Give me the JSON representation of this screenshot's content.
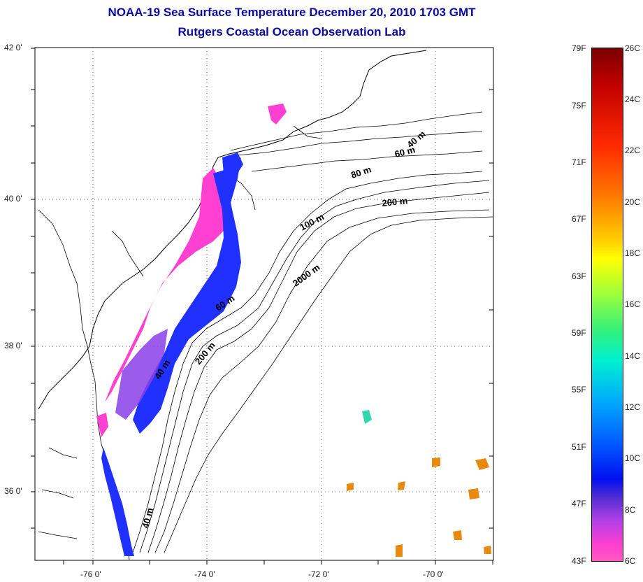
{
  "title": {
    "line1": "NOAA-19 Sea Surface Temperature December 20, 2010 1703 GMT",
    "line2": "Rutgers Coastal Ocean Observation Lab"
  },
  "map": {
    "lat_labels": [
      "42 0'",
      "40 0'",
      "38 0'",
      "36 0'"
    ],
    "lon_labels": [
      "-76 0'",
      "-74 0'",
      "-72 0'",
      "-70 0'"
    ],
    "isobath_labels": [
      "40 m",
      "60 m",
      "80 m",
      "200 m",
      "100 m",
      "2000 m",
      "60 m",
      "40 m",
      "200 m",
      "40 m"
    ],
    "sst_colors": {
      "cold": "#ff40d0",
      "mid": "#2030ff",
      "warm": "#e88a10"
    }
  },
  "colorbar": {
    "fahrenheit": [
      "79F",
      "75F",
      "71F",
      "67F",
      "63F",
      "59F",
      "55F",
      "51F",
      "47F",
      "43F"
    ],
    "celsius": [
      "26C",
      "24C",
      "22C",
      "20C",
      "18C",
      "16C",
      "14C",
      "12C",
      "10C",
      "8C",
      "6C"
    ]
  }
}
